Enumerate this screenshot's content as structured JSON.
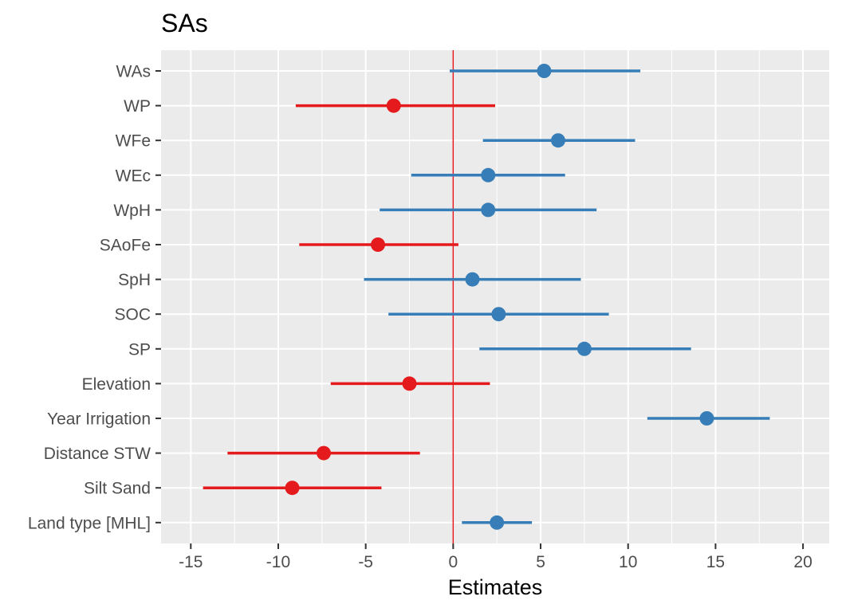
{
  "chart_data": {
    "type": "forest",
    "title": "SAs",
    "xlabel": "Estimates",
    "ylabel": "",
    "xlim": [
      -16.7,
      21.5
    ],
    "x_ticks": [
      -15,
      -10,
      -5,
      0,
      5,
      10,
      15,
      20
    ],
    "x_tick_labels": [
      "-15",
      "-10",
      "-5",
      "0",
      "5",
      "10",
      "15",
      "20"
    ],
    "reference_line": 0,
    "grid": true,
    "legend": "none",
    "colors": {
      "positive": "#377eb8",
      "negative": "#e41a1c",
      "panel": "#ebebeb",
      "grid": "#ffffff"
    },
    "categories": [
      "WAs",
      "WP",
      "WFe",
      "WEc",
      "WpH",
      "SAoFe",
      "SpH",
      "SOC",
      "SP",
      "Elevation",
      "Year Irrigation",
      "Distance STW",
      "Silt Sand",
      "Land type [MHL]"
    ],
    "estimates": [
      5.2,
      -3.4,
      6.0,
      2.0,
      2.0,
      -4.3,
      1.1,
      2.6,
      7.5,
      -2.5,
      14.5,
      -7.4,
      -9.2,
      2.5
    ],
    "ci_low": [
      -0.2,
      -9.0,
      1.7,
      -2.4,
      -4.2,
      -8.8,
      -5.1,
      -3.7,
      1.5,
      -7.0,
      11.1,
      -12.9,
      -14.3,
      0.5
    ],
    "ci_high": [
      10.7,
      2.4,
      10.4,
      6.4,
      8.2,
      0.3,
      7.3,
      8.9,
      13.6,
      2.1,
      18.1,
      -1.9,
      -4.1,
      4.5
    ]
  }
}
